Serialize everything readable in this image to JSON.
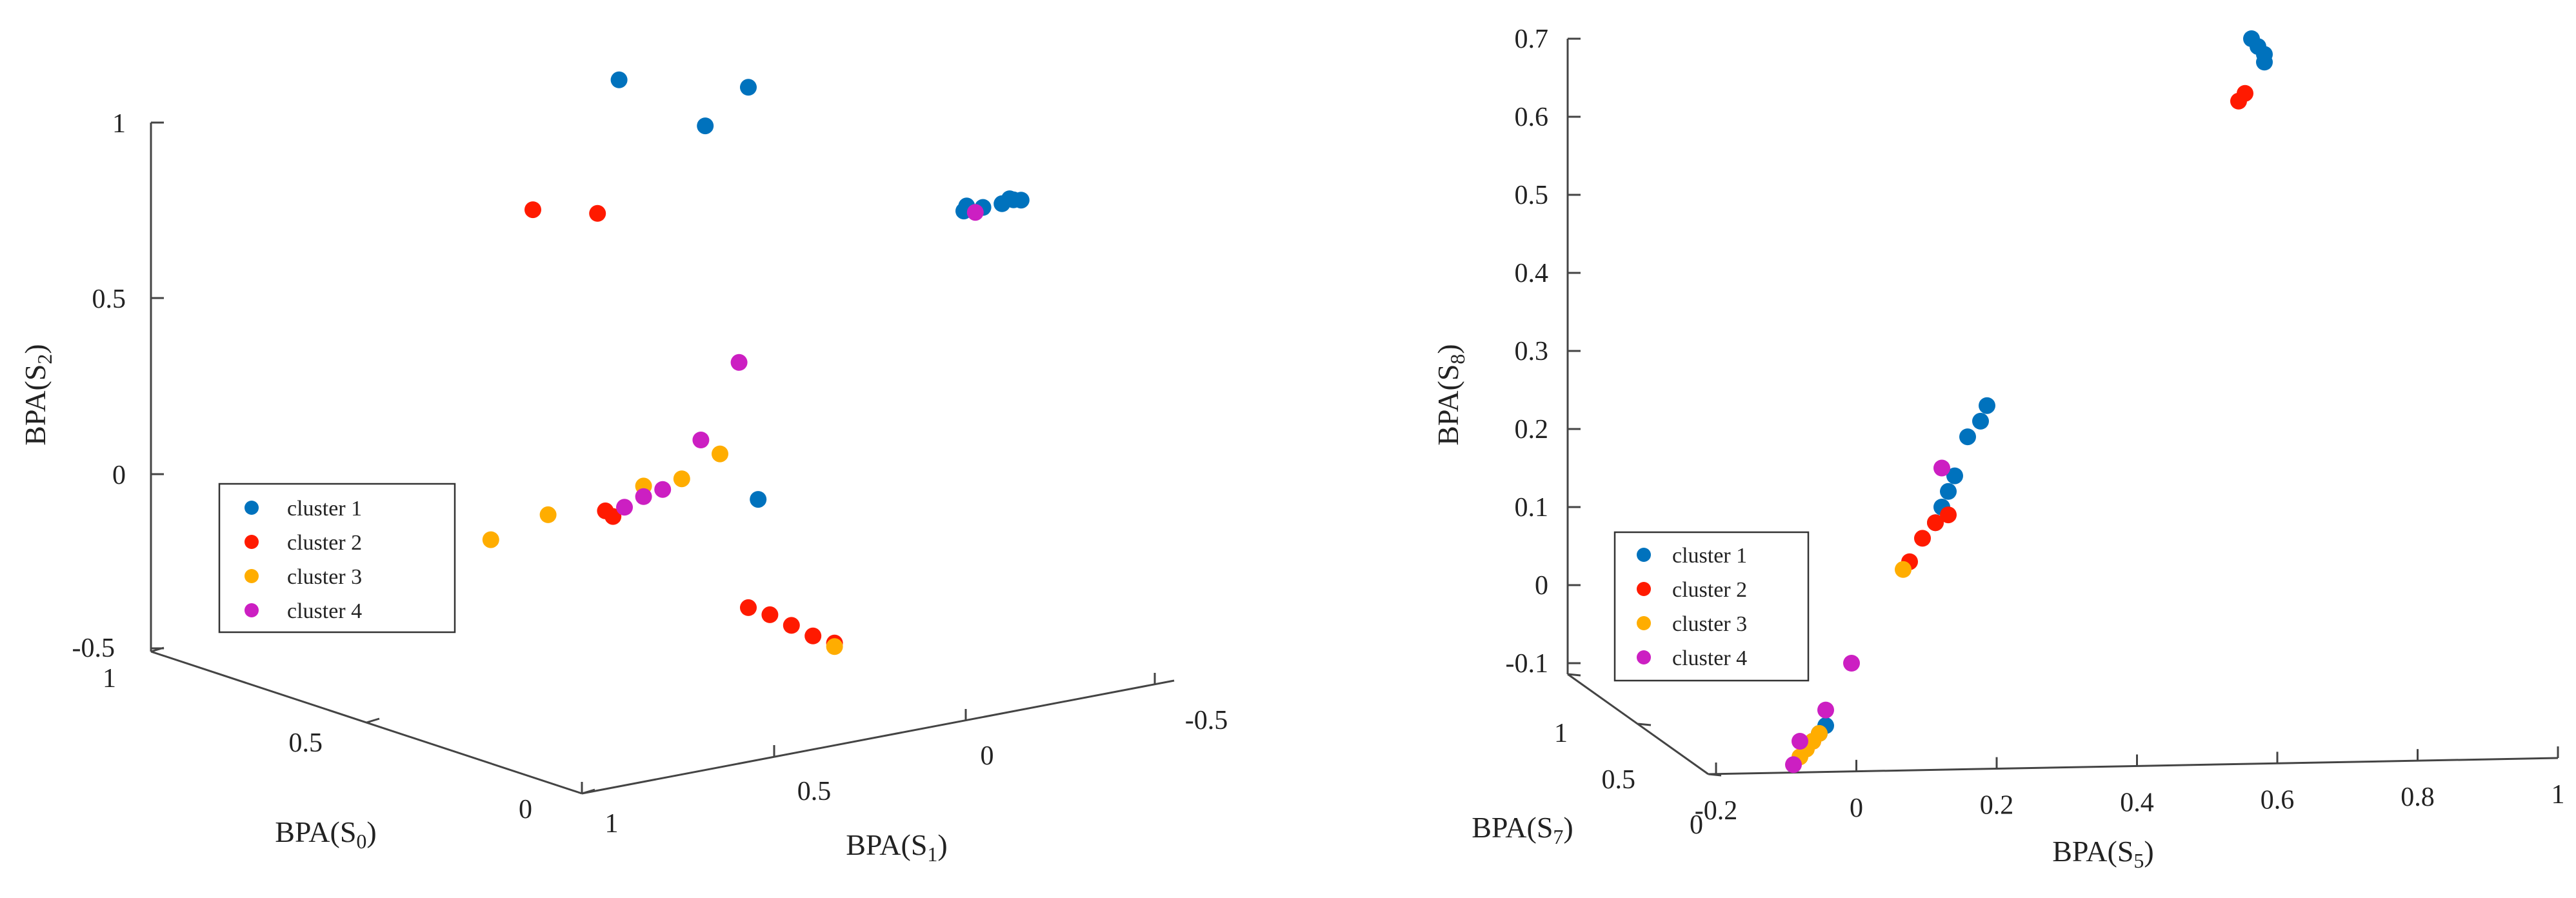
{
  "chart_data": [
    {
      "type": "scatter",
      "projection": "3d",
      "title": "",
      "xlabel": "BPA(S",
      "xlabel_sub": "0",
      "ylabel": "BPA(S",
      "ylabel_sub": "1",
      "zlabel": "BPA(S",
      "zlabel_sub": "2",
      "close_paren": ")",
      "z_ticks": [
        "1",
        "0.5",
        "0",
        "-0.5"
      ],
      "x_ticks": [
        "1",
        "0.5",
        "0"
      ],
      "y_ticks": [
        "1",
        "0.5",
        "0",
        "-0.5"
      ],
      "legend": [
        "cluster 1",
        "cluster 2",
        "cluster 3",
        "cluster 4"
      ],
      "colors": [
        "#0072BD",
        "#FF1A00",
        "#FFAD00",
        "#CC1FC2"
      ],
      "series": [
        {
          "name": "cluster 1",
          "points": [
            [
              0.8,
              0.0,
              1.0
            ],
            [
              0.6,
              0.0,
              0.95
            ],
            [
              0.5,
              0.0,
              1.1
            ],
            [
              0.0,
              0.0,
              0.95
            ],
            [
              0.02,
              -0.03,
              0.95
            ],
            [
              0.0,
              -0.05,
              0.95
            ],
            [
              0.0,
              -0.1,
              0.95
            ],
            [
              0.0,
              -0.15,
              0.95
            ],
            [
              0.0,
              -0.12,
              0.96
            ],
            [
              0.0,
              -0.13,
              0.955
            ],
            [
              0.3,
              0.2,
              0.05
            ]
          ]
        },
        {
          "name": "cluster 2",
          "points": [
            [
              1.0,
              0.0,
              0.55
            ],
            [
              0.85,
              0.0,
              0.6
            ],
            [
              0.5,
              0.0,
              -0.38
            ],
            [
              0.45,
              0.0,
              -0.38
            ],
            [
              0.4,
              0.0,
              -0.39
            ],
            [
              0.35,
              0.0,
              -0.4
            ],
            [
              0.3,
              0.0,
              -0.4
            ],
            [
              0.3,
              0.6,
              0.1
            ],
            [
              0.3,
              0.58,
              0.08
            ]
          ]
        },
        {
          "name": "cluster 3",
          "points": [
            [
              0.3,
              0.0,
              -0.41
            ],
            [
              0.3,
              0.9,
              0.08
            ],
            [
              0.3,
              0.75,
              0.12
            ],
            [
              0.3,
              0.5,
              0.15
            ],
            [
              0.3,
              0.4,
              0.15
            ],
            [
              0.3,
              0.3,
              0.2
            ]
          ]
        },
        {
          "name": "cluster 4",
          "points": [
            [
              0.0,
              -0.03,
              0.94
            ],
            [
              0.3,
              0.55,
              0.1
            ],
            [
              0.3,
              0.5,
              0.12
            ],
            [
              0.3,
              0.45,
              0.13
            ],
            [
              0.3,
              0.35,
              0.25
            ],
            [
              0.3,
              0.25,
              0.45
            ]
          ]
        }
      ]
    },
    {
      "type": "scatter",
      "projection": "3d",
      "title": "",
      "xlabel": "BPA(S",
      "xlabel_sub": "7",
      "ylabel": "BPA(S",
      "ylabel_sub": "5",
      "zlabel": "BPA(S",
      "zlabel_sub": "8",
      "close_paren": ")",
      "z_ticks": [
        "0.7",
        "0.6",
        "0.5",
        "0.4",
        "0.3",
        "0.2",
        "0.1",
        "0",
        "-0.1"
      ],
      "x_ticks": [
        "1",
        "0.5",
        "0"
      ],
      "y_ticks": [
        "-0.2",
        "0",
        "0.2",
        "0.4",
        "0.6",
        "0.8",
        "1"
      ],
      "legend": [
        "cluster 1",
        "cluster 2",
        "cluster 3",
        "cluster 4"
      ],
      "colors": [
        "#0072BD",
        "#FF1A00",
        "#FFAD00",
        "#CC1FC2"
      ],
      "series": [
        {
          "name": "cluster 1",
          "s5": [
            0.62,
            0.63,
            0.64,
            0.64,
            0.21,
            0.2,
            0.18,
            0.16,
            0.15,
            0.14,
            0.13,
            -0.04,
            -0.05
          ],
          "s8": [
            0.7,
            0.69,
            0.68,
            0.67,
            0.23,
            0.21,
            0.19,
            0.14,
            0.12,
            0.1,
            0.08,
            -0.18,
            -0.19
          ]
        },
        {
          "name": "cluster 2",
          "s5": [
            0.6,
            0.61,
            0.15,
            0.13,
            0.11,
            0.09,
            -0.06
          ],
          "s8": [
            0.62,
            0.63,
            0.09,
            0.08,
            0.06,
            0.03,
            -0.2
          ]
        },
        {
          "name": "cluster 3",
          "s5": [
            0.08,
            -0.05,
            -0.06,
            -0.07,
            -0.08
          ],
          "s8": [
            0.02,
            -0.19,
            -0.2,
            -0.21,
            -0.22
          ]
        },
        {
          "name": "cluster 4",
          "s5": [
            0.14,
            0.0,
            -0.04,
            -0.08,
            -0.09
          ],
          "s8": [
            0.15,
            -0.1,
            -0.16,
            -0.2,
            -0.23
          ]
        }
      ]
    }
  ]
}
